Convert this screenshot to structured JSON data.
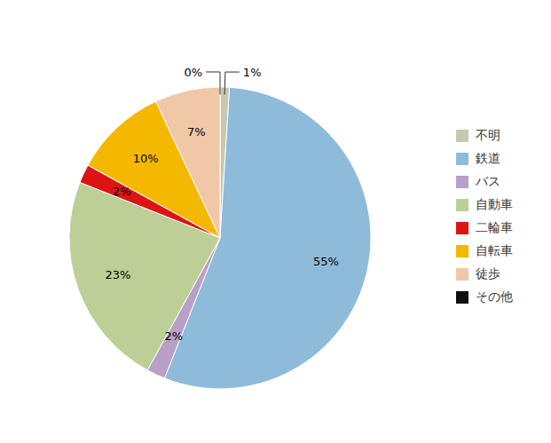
{
  "chart_data": {
    "type": "pie",
    "categories": [
      "不明",
      "鉄道",
      "バス",
      "自動車",
      "二輪車",
      "自転車",
      "徒歩",
      "その他"
    ],
    "values": [
      1,
      55,
      2,
      23,
      2,
      10,
      7,
      0
    ],
    "value_labels": [
      "1%",
      "55%",
      "2%",
      "23%",
      "2%",
      "10%",
      "7%",
      "0%"
    ],
    "colors": [
      "#C8C8B0",
      "#8FBBDA",
      "#B8A0C8",
      "#BDCF96",
      "#DC1414",
      "#F5B800",
      "#F0C8A8",
      "#101010"
    ],
    "data_labels": true,
    "legend": "right"
  }
}
